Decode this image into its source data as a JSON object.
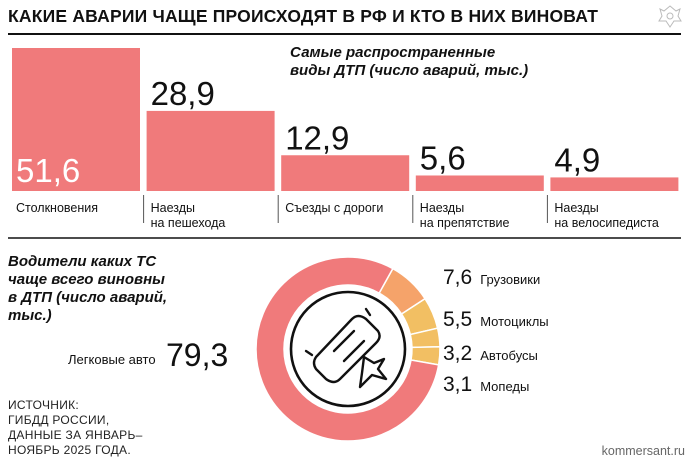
{
  "header": {
    "title": "КАКИЕ АВАРИИ ЧАЩЕ ПРОИСХОДЯТ В РФ И КТО В НИХ ВИНОВАТ"
  },
  "colors": {
    "bar": "#f07a7b",
    "donut_main": "#f07a7b",
    "donut_orange": "#f5a36a",
    "donut_yellow": "#f2bf63",
    "rule": "#111111"
  },
  "icons": [
    "kommersant-emblem-icon",
    "car-crash-icon"
  ],
  "chart_data": [
    {
      "type": "bar",
      "title": "Самые распространенные\nвиды ДТП (число аварий, тыс.)",
      "categories": [
        "Столкновения",
        "Наезды\nна пешехода",
        "Съезды с дороги",
        "Наезды\nна препятствие",
        "Наезды\nна велосипедиста"
      ],
      "values": [
        51.6,
        28.9,
        12.9,
        5.6,
        4.9
      ],
      "value_labels": [
        "51,6",
        "28,9",
        "12,9",
        "5,6",
        "4,9"
      ],
      "xlabel": "",
      "ylabel": "",
      "grid": false,
      "legend": "none"
    },
    {
      "type": "pie",
      "donut": true,
      "title": "Водители каких ТС\nчаще всего виновны\nв ДТП (число аварий,\nтыс.)",
      "labels": [
        "Легковые авто",
        "Грузовики",
        "Мотоциклы",
        "Автобусы",
        "Мопеды"
      ],
      "values": [
        79.3,
        7.6,
        5.5,
        3.2,
        3.1
      ],
      "value_labels": [
        "79,3",
        "7,6",
        "5,5",
        "3,2",
        "3,1"
      ],
      "legend": "none"
    }
  ],
  "source": {
    "text": "ИСТОЧНИК:\nГИБДД РОССИИ,\nДАННЫЕ ЗА ЯНВАРЬ–\nНОЯБРЬ 2025 ГОДА."
  },
  "footer": {
    "credit": "kommersant.ru"
  }
}
